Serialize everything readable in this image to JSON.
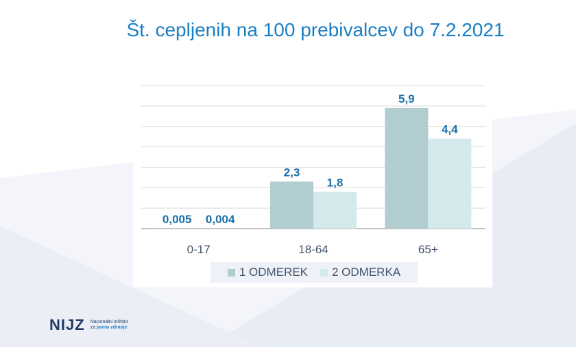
{
  "slide": {
    "title": "Št. cepljenih na 100 prebivalcev do 7.2.2021",
    "logo": {
      "mark": "NIJZ",
      "line1": "Nacionalni inštitut",
      "line2_prefix": "za",
      "line2_bold": "javno zdravje"
    }
  },
  "colors": {
    "series1": "#b2cdd0",
    "series2": "#d3e9ec",
    "value_label": "#1a6fa8",
    "title": "#1a7ec4"
  },
  "chart_data": {
    "type": "bar",
    "title": "",
    "xlabel": "",
    "ylabel": "",
    "categories": [
      "0-17",
      "18-64",
      "65+"
    ],
    "series": [
      {
        "name": "1 ODMEREK",
        "values": [
          0.005,
          2.3,
          5.9
        ],
        "labels": [
          "0,005",
          "2,3",
          "5,9"
        ]
      },
      {
        "name": "2 ODMERKA",
        "values": [
          0.004,
          1.8,
          4.4
        ],
        "labels": [
          "0,004",
          "1,8",
          "4,4"
        ]
      }
    ],
    "ylim": [
      0,
      7
    ],
    "grid": true,
    "legend": "bottom"
  }
}
